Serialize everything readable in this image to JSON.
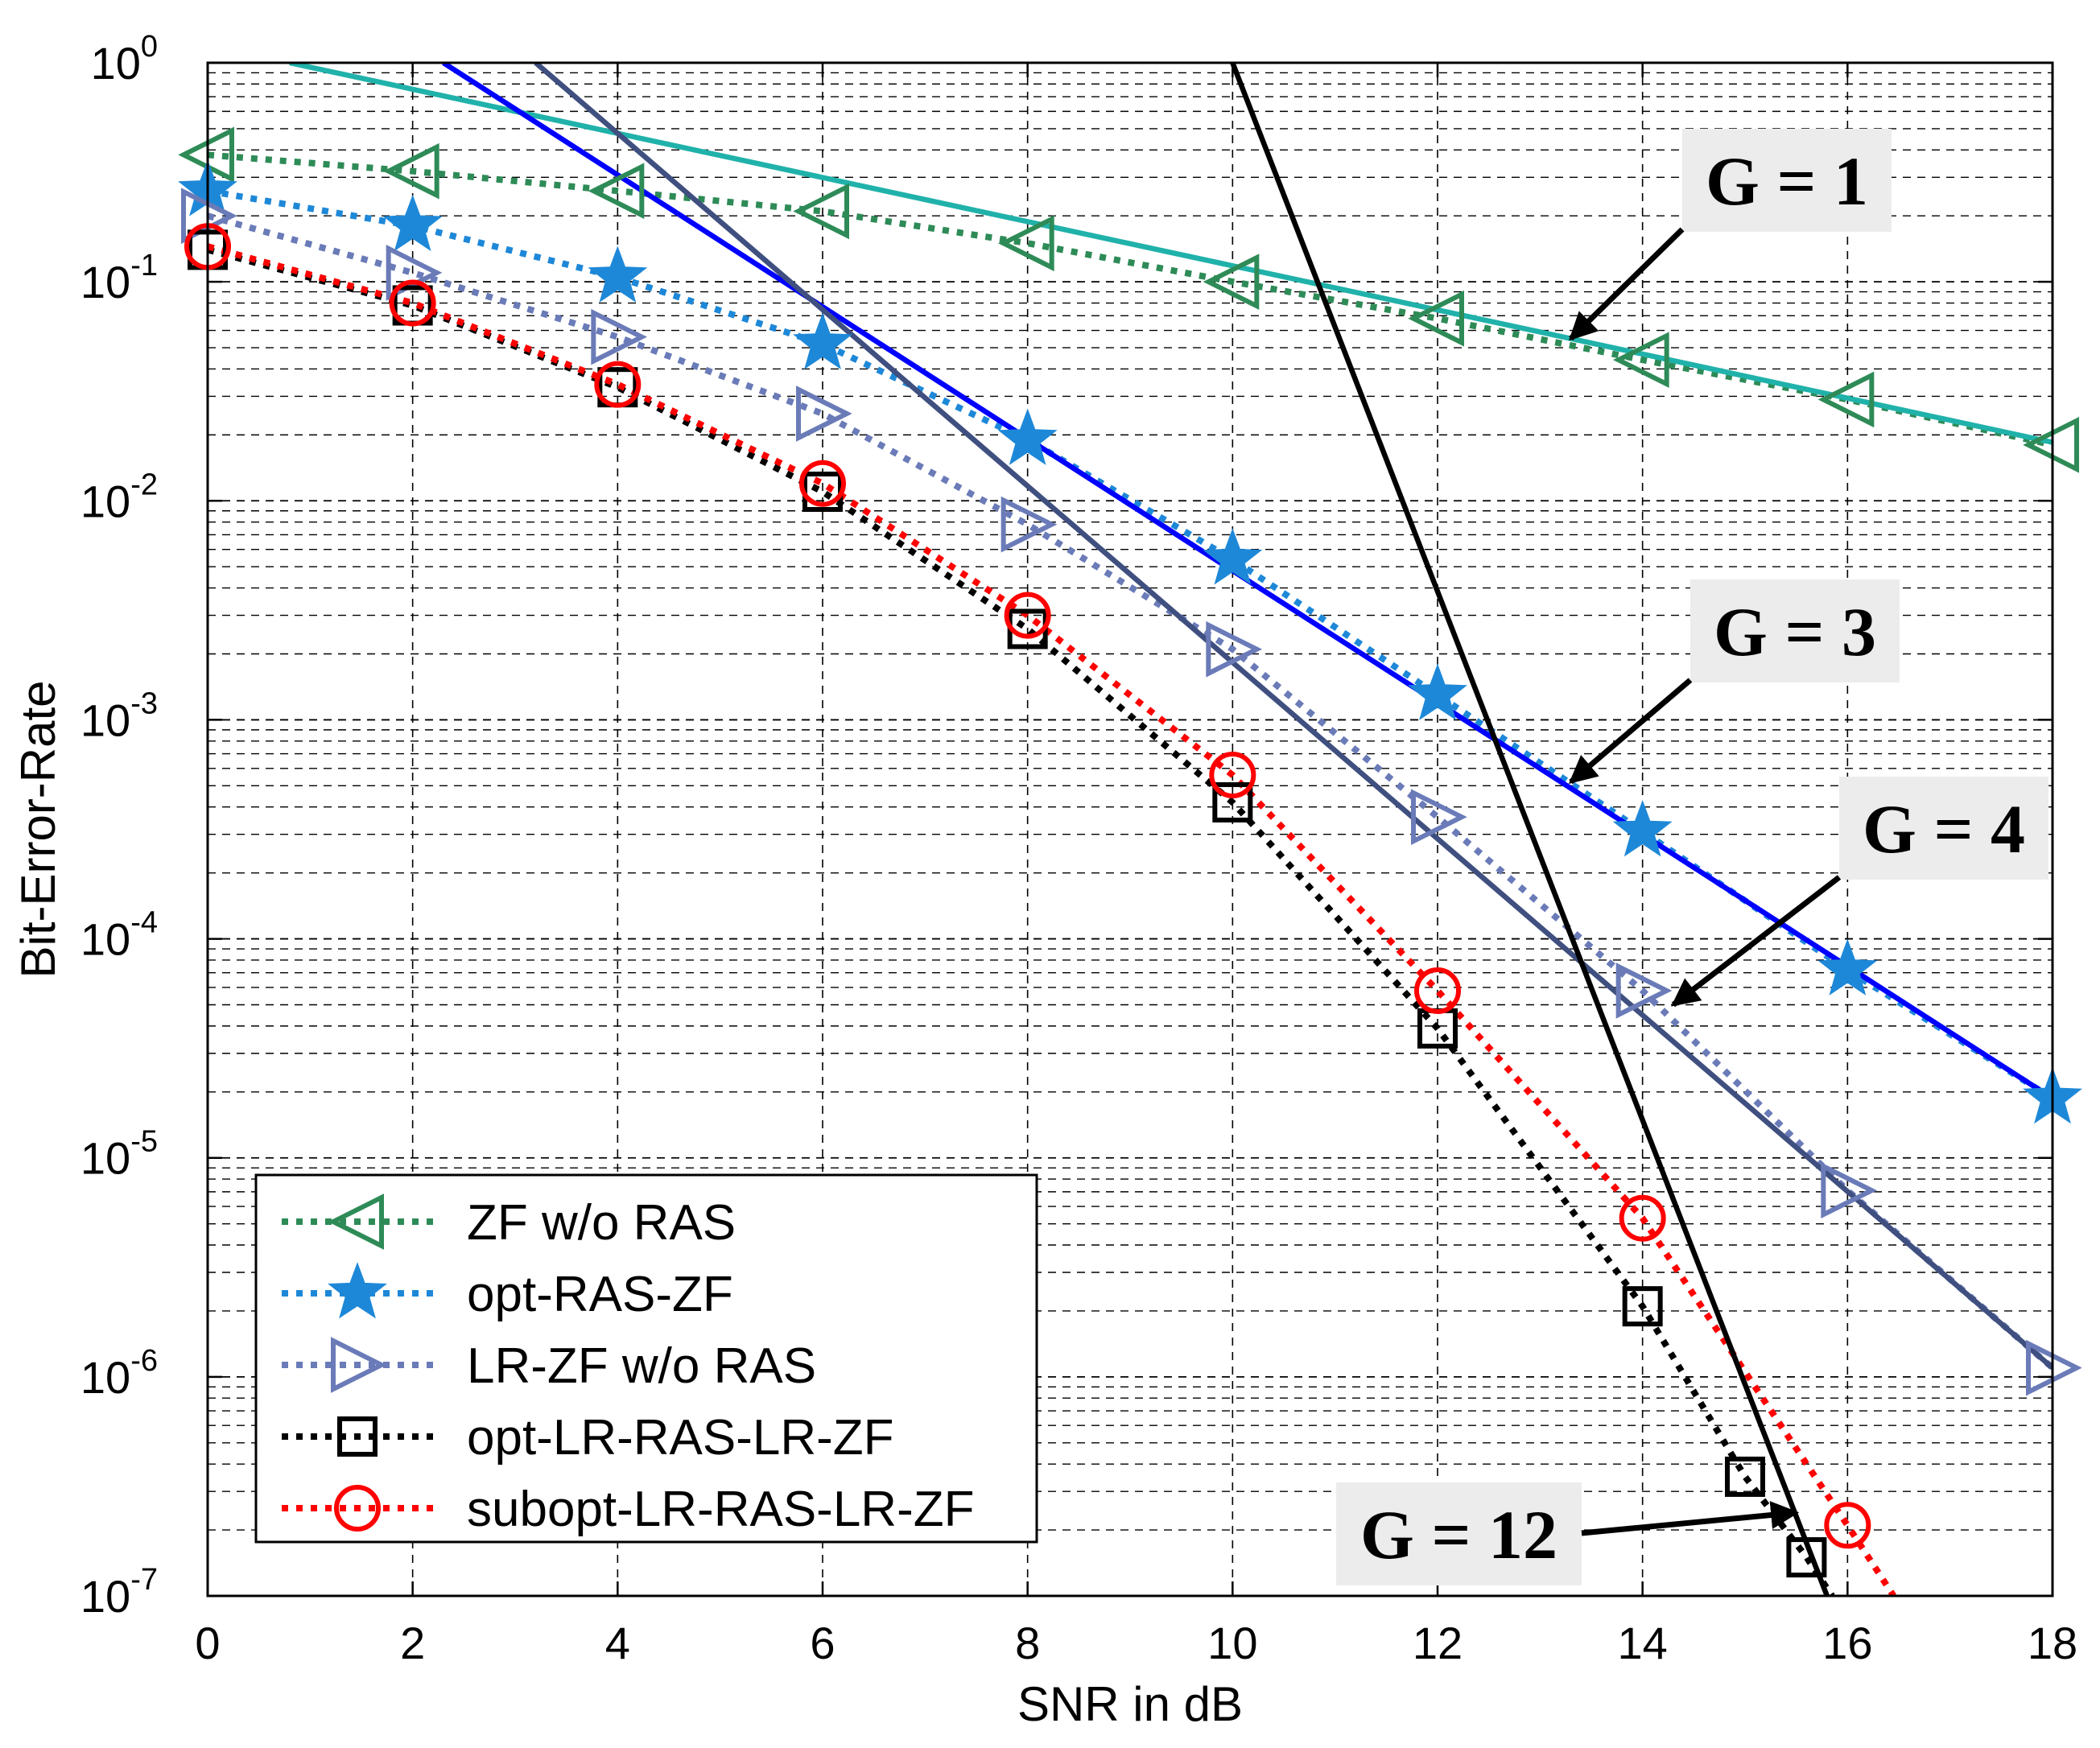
{
  "chart_data": {
    "type": "line",
    "title": "",
    "xlabel": "SNR in dB",
    "ylabel": "Bit-Error-Rate",
    "yscale": "log",
    "xlim": [
      0,
      18
    ],
    "ylim_exp": [
      -7,
      0
    ],
    "grid": true,
    "x_ticks": [
      0,
      2,
      4,
      6,
      8,
      10,
      12,
      14,
      16,
      18
    ],
    "x_tick_labels": [
      "0",
      "2",
      "4",
      "6",
      "8",
      "10",
      "12",
      "14",
      "16",
      "18"
    ],
    "y_ticks": [
      {
        "exp": 0,
        "base": "10",
        "sup": "0"
      },
      {
        "exp": -1,
        "base": "10",
        "sup": "-1"
      },
      {
        "exp": -2,
        "base": "10",
        "sup": "-2"
      },
      {
        "exp": -3,
        "base": "10",
        "sup": "-3"
      },
      {
        "exp": -4,
        "base": "10",
        "sup": "-4"
      },
      {
        "exp": -5,
        "base": "10",
        "sup": "-5"
      },
      {
        "exp": -6,
        "base": "10",
        "sup": "-6"
      },
      {
        "exp": -7,
        "base": "10",
        "sup": "-7"
      }
    ],
    "legend_position": "bottom-left",
    "series": [
      {
        "name": "ZF w/o RAS",
        "color": "#2e8b57",
        "style": "dotted",
        "marker": "triangle-left",
        "x": [
          0,
          2,
          4,
          6,
          8,
          10,
          12,
          14,
          16,
          18
        ],
        "y": [
          0.38,
          0.32,
          0.26,
          0.21,
          0.15,
          0.1,
          0.068,
          0.044,
          0.029,
          0.018
        ]
      },
      {
        "name": "opt-RAS-ZF",
        "color": "#1e88d8",
        "style": "dotted",
        "marker": "star",
        "x": [
          0,
          2,
          4,
          6,
          8,
          10,
          12,
          14,
          16,
          18
        ],
        "y": [
          0.26,
          0.18,
          0.105,
          0.052,
          0.019,
          0.0054,
          0.0013,
          0.00031,
          7.2e-05,
          1.87e-05
        ]
      },
      {
        "name": "LR-ZF w/o RAS",
        "color": "#6a7bb8",
        "style": "dotted",
        "marker": "triangle-right",
        "x": [
          0,
          2,
          4,
          6,
          8,
          10,
          12,
          14,
          16,
          18
        ],
        "y": [
          0.2,
          0.11,
          0.056,
          0.025,
          0.0078,
          0.0021,
          0.00036,
          5.8e-05,
          7.1e-06,
          1.1e-06
        ]
      },
      {
        "name": "opt-LR-RAS-LR-ZF",
        "color": "#000000",
        "style": "dotted",
        "marker": "square",
        "x": [
          0,
          2,
          4,
          6,
          8,
          10,
          12,
          14,
          15,
          15.6,
          15.85
        ],
        "y": [
          0.14,
          0.078,
          0.033,
          0.011,
          0.0026,
          0.00042,
          3.9e-05,
          2.1e-06,
          3.5e-07,
          1.5e-07,
          1e-07
        ]
      },
      {
        "name": "subopt-LR-RAS-LR-ZF",
        "color": "#ff0000",
        "style": "dotted",
        "marker": "circle",
        "x": [
          0,
          2,
          4,
          6,
          8,
          10,
          12,
          14,
          16,
          16.45
        ],
        "y": [
          0.145,
          0.08,
          0.034,
          0.012,
          0.003,
          0.00056,
          5.8e-05,
          5.3e-06,
          2.1e-07,
          1e-07
        ]
      },
      {
        "name": "G = 1 reference",
        "color": "#20b2aa",
        "style": "solid",
        "marker": "none",
        "in_legend": false,
        "x": [
          0.8,
          18
        ],
        "y": [
          1.0,
          0.0185
        ]
      },
      {
        "name": "G = 3 reference",
        "color": "#0000ff",
        "style": "solid",
        "marker": "none",
        "in_legend": false,
        "x": [
          2.3,
          18
        ],
        "y": [
          1.0,
          1.87e-05
        ]
      },
      {
        "name": "G = 4 reference",
        "color": "#3f4f7f",
        "style": "solid",
        "marker": "none",
        "in_legend": false,
        "x": [
          3.2,
          18
        ],
        "y": [
          1.0,
          1.1e-06
        ]
      },
      {
        "name": "G = 12 reference",
        "color": "#000000",
        "style": "solid",
        "marker": "none",
        "in_legend": false,
        "x": [
          10.0,
          15.8
        ],
        "y": [
          1.0,
          1e-07
        ]
      }
    ],
    "annotations": [
      {
        "text": "G = 1",
        "target_x": 13.3,
        "target_y": 0.055
      },
      {
        "text": "G = 3",
        "target_x": 13.3,
        "target_y": 0.00052
      },
      {
        "text": "G = 4",
        "target_x": 14.3,
        "target_y": 5e-05
      },
      {
        "text": "G = 12",
        "target_x": 15.5,
        "target_y": 2.4e-07
      }
    ]
  }
}
